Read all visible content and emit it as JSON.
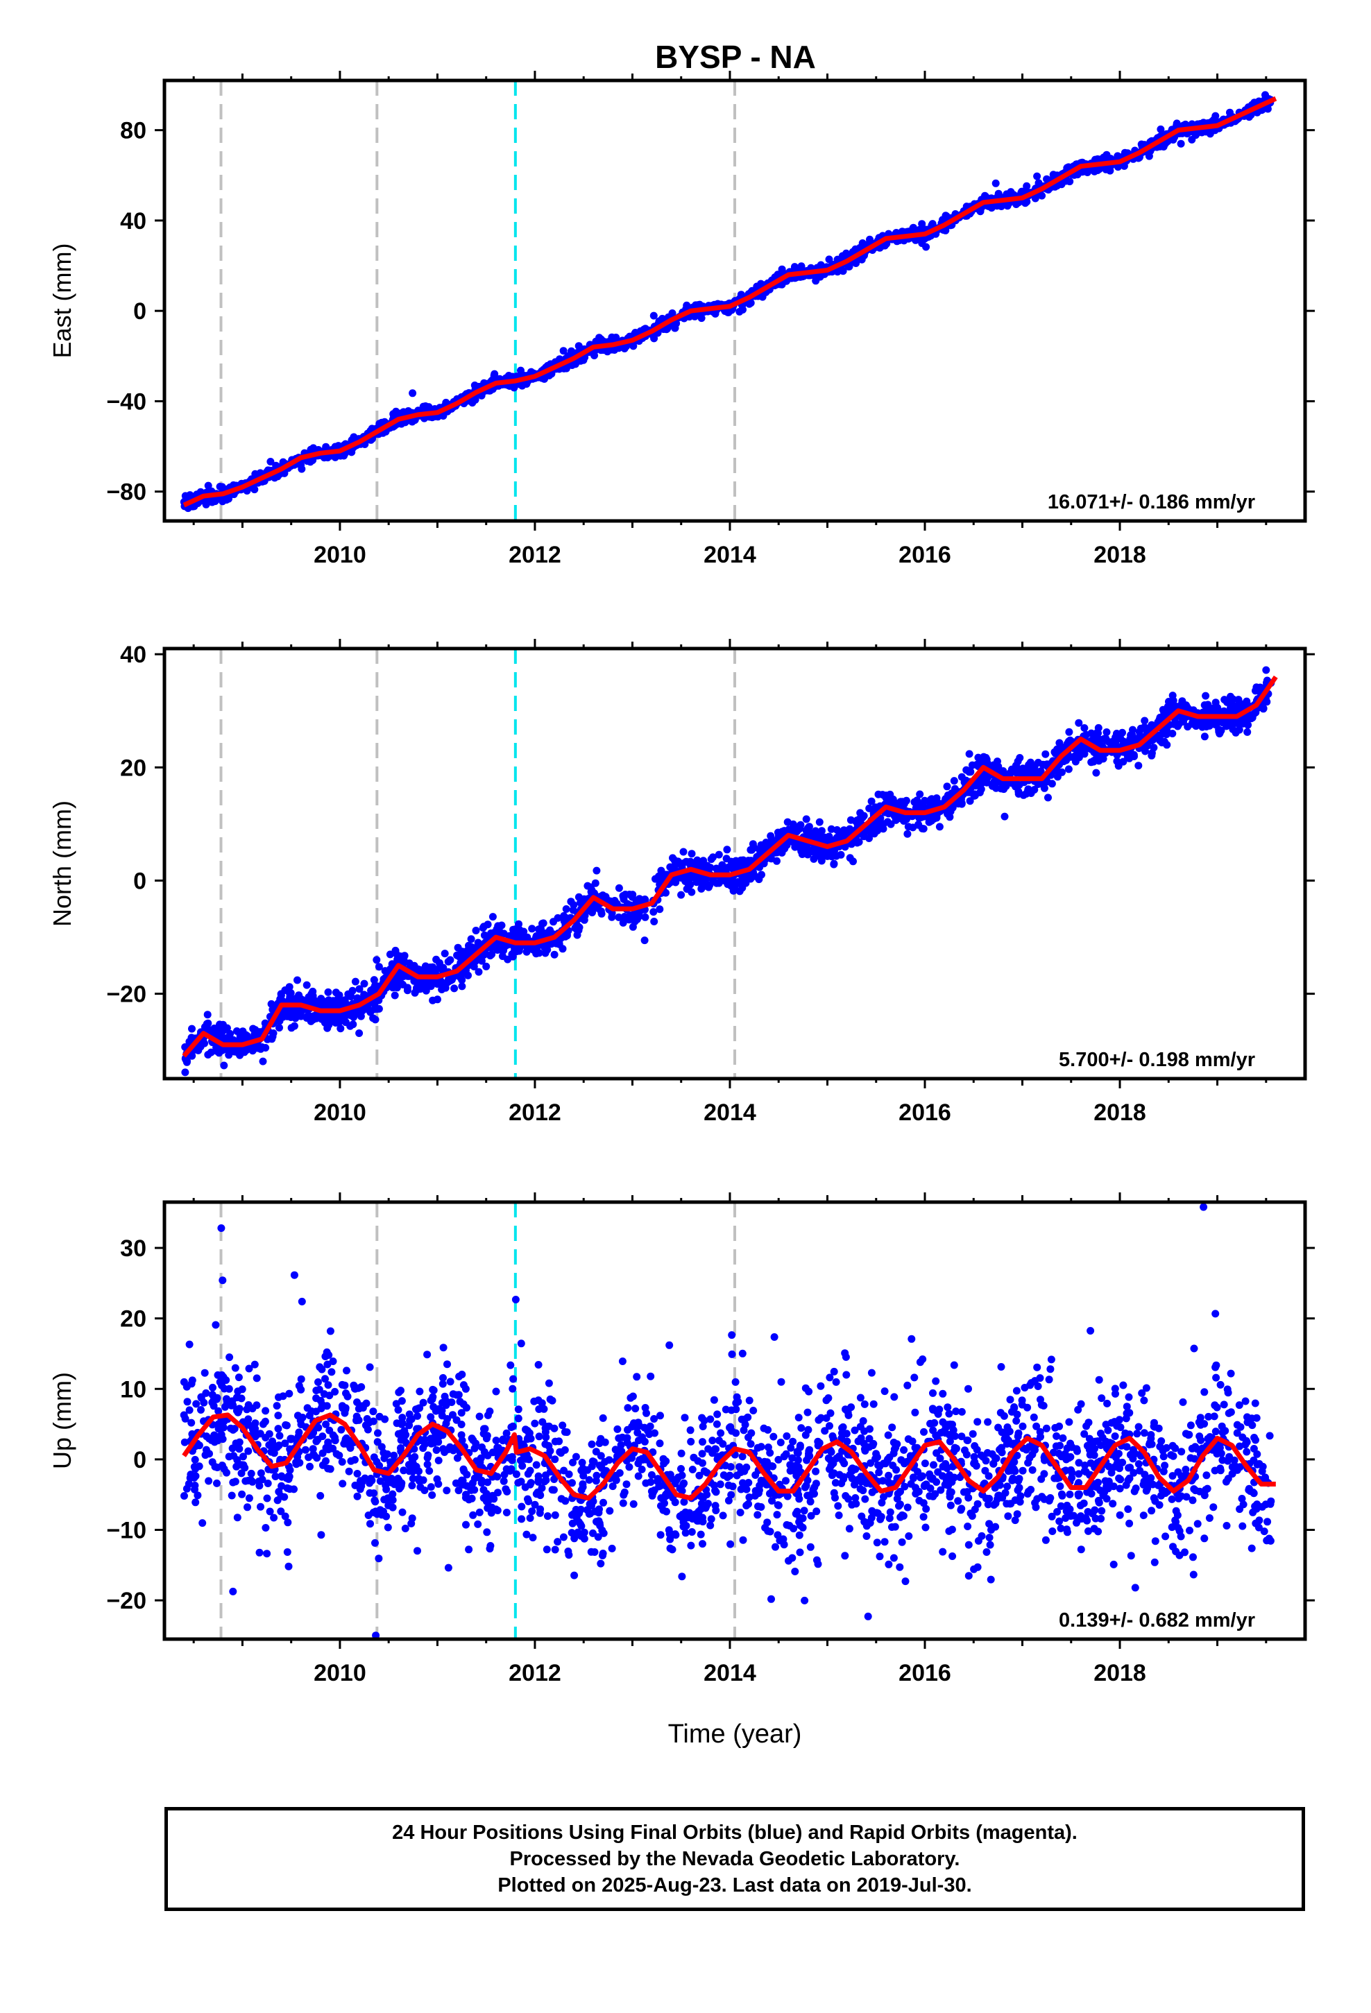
{
  "title": "BYSP - NA",
  "xlabel": "Time (year)",
  "caption": {
    "line1": "24 Hour Positions Using Final Orbits (blue) and Rapid Orbits (magenta).",
    "line2": "Processed by the Nevada Geodetic Laboratory.",
    "line3": "Plotted on 2025-Aug-23. Last data on 2019-Jul-30."
  },
  "colors": {
    "points": "#0000ff",
    "fit": "#ff0000",
    "event_gray": "#c0c0c0",
    "event_cyan": "#00e5ee"
  },
  "chart_data": [
    {
      "type": "scatter",
      "ylabel": "East (mm)",
      "xlim": [
        2008.2,
        2019.9
      ],
      "ylim": [
        -93,
        102
      ],
      "yticks": [
        -80,
        -40,
        0,
        40,
        80
      ],
      "xticks": [
        2010,
        2012,
        2014,
        2016,
        2018
      ],
      "grid": false,
      "rate_label": "16.071+/- 0.186 mm/yr",
      "events": {
        "gray": [
          2008.78,
          2010.38,
          2014.05
        ],
        "cyan": [
          2011.8
        ]
      },
      "fit": {
        "x": [
          2008.4,
          2008.6,
          2008.8,
          2009.0,
          2009.2,
          2009.4,
          2009.6,
          2009.8,
          2010.0,
          2010.2,
          2010.4,
          2010.6,
          2010.8,
          2011.0,
          2011.2,
          2011.4,
          2011.6,
          2011.8,
          2012.0,
          2012.2,
          2012.4,
          2012.6,
          2012.8,
          2013.0,
          2013.2,
          2013.4,
          2013.6,
          2013.8,
          2014.0,
          2014.2,
          2014.4,
          2014.6,
          2014.8,
          2015.0,
          2015.2,
          2015.4,
          2015.6,
          2015.8,
          2016.0,
          2016.2,
          2016.4,
          2016.6,
          2016.8,
          2017.0,
          2017.2,
          2017.4,
          2017.6,
          2017.8,
          2018.0,
          2018.2,
          2018.4,
          2018.6,
          2018.8,
          2019.0,
          2019.2,
          2019.4,
          2019.6
        ],
        "y": [
          -86,
          -82,
          -81,
          -78,
          -74,
          -70,
          -65,
          -63,
          -62,
          -58,
          -53,
          -48,
          -46,
          -45,
          -41,
          -36,
          -32,
          -31,
          -29,
          -25,
          -21,
          -16,
          -15,
          -13,
          -9,
          -4,
          0,
          1,
          2,
          6,
          11,
          16,
          17,
          18,
          22,
          27,
          32,
          33,
          34,
          38,
          43,
          48,
          49,
          50,
          54,
          59,
          64,
          65,
          66,
          70,
          75,
          80,
          81,
          82,
          86,
          90,
          94
        ]
      },
      "scatter_model": {
        "t0": 2008.4,
        "t1": 2019.55,
        "n": 2300,
        "noise": 1.4,
        "outlier_frac": 0.01
      }
    },
    {
      "type": "scatter",
      "ylabel": "North (mm)",
      "xlim": [
        2008.2,
        2019.9
      ],
      "ylim": [
        -35,
        41
      ],
      "yticks": [
        -20,
        0,
        20,
        40
      ],
      "xticks": [
        2010,
        2012,
        2014,
        2016,
        2018
      ],
      "grid": false,
      "rate_label": "5.700+/- 0.198 mm/yr",
      "events": {
        "gray": [
          2008.78,
          2010.38,
          2014.05
        ],
        "cyan": [
          2011.8
        ]
      },
      "fit": {
        "x": [
          2008.4,
          2008.6,
          2008.8,
          2009.0,
          2009.2,
          2009.4,
          2009.6,
          2009.8,
          2010.0,
          2010.2,
          2010.4,
          2010.6,
          2010.8,
          2011.0,
          2011.2,
          2011.4,
          2011.6,
          2011.8,
          2012.0,
          2012.2,
          2012.4,
          2012.6,
          2012.8,
          2013.0,
          2013.2,
          2013.4,
          2013.6,
          2013.8,
          2014.0,
          2014.2,
          2014.4,
          2014.6,
          2014.8,
          2015.0,
          2015.2,
          2015.4,
          2015.6,
          2015.8,
          2016.0,
          2016.2,
          2016.4,
          2016.6,
          2016.8,
          2017.0,
          2017.2,
          2017.4,
          2017.6,
          2017.8,
          2018.0,
          2018.2,
          2018.4,
          2018.6,
          2018.8,
          2019.0,
          2019.2,
          2019.4,
          2019.6
        ],
        "y": [
          -31,
          -27,
          -29,
          -29,
          -28,
          -22,
          -22,
          -23,
          -23,
          -22,
          -20,
          -15,
          -17,
          -17,
          -16,
          -13,
          -10,
          -11,
          -11,
          -10,
          -7,
          -3,
          -5,
          -5,
          -4,
          1,
          2,
          1,
          1,
          2,
          5,
          8,
          7,
          6,
          7,
          10,
          13,
          12,
          12,
          13,
          16,
          20,
          18,
          18,
          18,
          22,
          25,
          23,
          23,
          24,
          27,
          30,
          29,
          29,
          29,
          31,
          36
        ]
      },
      "scatter_model": {
        "t0": 2008.4,
        "t1": 2019.55,
        "n": 2300,
        "noise": 1.5,
        "outlier_frac": 0.01
      }
    },
    {
      "type": "scatter",
      "ylabel": "Up (mm)",
      "xlim": [
        2008.2,
        2019.9
      ],
      "ylim": [
        -25.5,
        36.5
      ],
      "yticks": [
        -20,
        -10,
        0,
        10,
        20,
        30
      ],
      "xticks": [
        2010,
        2012,
        2014,
        2016,
        2018
      ],
      "grid": false,
      "rate_label": "0.139+/- 0.682 mm/yr",
      "events": {
        "gray": [
          2008.78,
          2010.38,
          2014.05
        ],
        "cyan": [
          2011.8
        ]
      },
      "fit": {
        "x": [
          2008.4,
          2008.55,
          2008.7,
          2008.85,
          2009.0,
          2009.15,
          2009.3,
          2009.45,
          2009.6,
          2009.75,
          2009.9,
          2010.05,
          2010.2,
          2010.35,
          2010.5,
          2010.65,
          2010.8,
          2010.95,
          2011.1,
          2011.25,
          2011.4,
          2011.55,
          2011.7,
          2011.79,
          2011.81,
          2011.95,
          2012.1,
          2012.25,
          2012.4,
          2012.55,
          2012.7,
          2012.85,
          2013.0,
          2013.15,
          2013.3,
          2013.45,
          2013.6,
          2013.75,
          2013.9,
          2014.05,
          2014.2,
          2014.35,
          2014.5,
          2014.65,
          2014.8,
          2014.95,
          2015.1,
          2015.25,
          2015.4,
          2015.55,
          2015.7,
          2015.85,
          2016.0,
          2016.15,
          2016.3,
          2016.45,
          2016.6,
          2016.75,
          2016.9,
          2017.05,
          2017.2,
          2017.35,
          2017.5,
          2017.65,
          2017.8,
          2017.95,
          2018.1,
          2018.25,
          2018.4,
          2018.55,
          2018.7,
          2018.85,
          2019.0,
          2019.15,
          2019.3,
          2019.45,
          2019.6
        ],
        "y": [
          0.5,
          3.5,
          6.0,
          6.3,
          4.5,
          1.5,
          -1.0,
          -0.5,
          2.5,
          5.5,
          6.3,
          5.0,
          2.0,
          -1.5,
          -2.0,
          0.5,
          3.5,
          5.0,
          4.0,
          1.5,
          -1.5,
          -2.0,
          1.0,
          3.5,
          1.0,
          1.5,
          0.5,
          -2.5,
          -5.0,
          -5.5,
          -3.5,
          -0.5,
          1.5,
          1.0,
          -2.0,
          -5.0,
          -5.5,
          -3.5,
          -0.5,
          1.5,
          1.0,
          -2.0,
          -4.5,
          -4.5,
          -1.5,
          1.5,
          2.5,
          1.0,
          -2.0,
          -4.5,
          -4.0,
          -1.0,
          2.0,
          2.5,
          0.0,
          -3.0,
          -4.5,
          -2.5,
          1.0,
          3.0,
          2.0,
          -1.0,
          -4.0,
          -4.0,
          -1.0,
          2.0,
          3.0,
          1.0,
          -2.5,
          -4.5,
          -3.0,
          0.5,
          3.0,
          2.0,
          -1.0,
          -3.5,
          -3.5
        ]
      },
      "scatter_model": {
        "t0": 2008.4,
        "t1": 2019.55,
        "n": 2300,
        "noise": 5.0,
        "outlier_frac": 0.02
      }
    }
  ]
}
